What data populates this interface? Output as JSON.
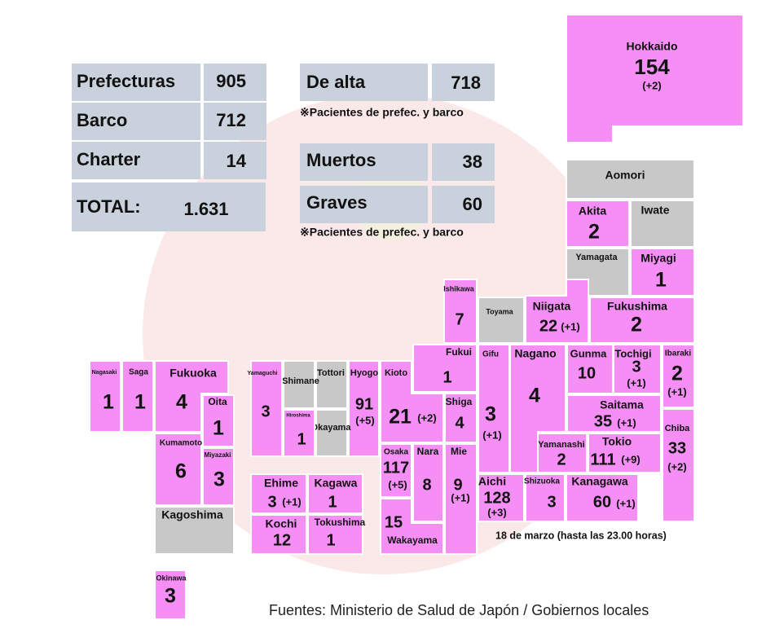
{
  "summary": [
    {
      "label": "Prefecturas",
      "value": 905
    },
    {
      "label": "Barco",
      "value": 712
    },
    {
      "label": "Charter",
      "value": 14
    }
  ],
  "total": {
    "label": "TOTAL:",
    "value": "1.631"
  },
  "discharged": {
    "label": "De alta",
    "value": 718,
    "note": "※Pacientes de prefec. y barco"
  },
  "status": [
    {
      "label": "Muertos",
      "value": 38
    },
    {
      "label": "Graves",
      "value": 60
    }
  ],
  "status_note": "※Pacientes de prefec. y barco",
  "prefectures": [
    {
      "name": "Hokkaido",
      "cases": 154,
      "change": "(+2)"
    },
    {
      "name": "Aomori"
    },
    {
      "name": "Akita",
      "cases": 2
    },
    {
      "name": "Iwate"
    },
    {
      "name": "Yamagata"
    },
    {
      "name": "Miyagi",
      "cases": 1
    },
    {
      "name": "Niigata",
      "cases": 22,
      "change": "(+1)"
    },
    {
      "name": "Fukushima",
      "cases": 2
    },
    {
      "name": "Toyama"
    },
    {
      "name": "Ishikawa",
      "cases": 7
    },
    {
      "name": "Fukui",
      "cases": 1
    },
    {
      "name": "Kioto",
      "cases": 21,
      "change": "(+2)"
    },
    {
      "name": "Shiga",
      "cases": 4
    },
    {
      "name": "Gifu",
      "cases": 3,
      "change": "(+1)"
    },
    {
      "name": "Nagano",
      "cases": 4
    },
    {
      "name": "Gunma",
      "cases": 10
    },
    {
      "name": "Tochigi",
      "cases": 3,
      "change": "(+1)"
    },
    {
      "name": "Ibaraki",
      "cases": 2,
      "change": "(+1)"
    },
    {
      "name": "Saitama",
      "cases": 35,
      "change": "(+1)"
    },
    {
      "name": "Yamanashi",
      "cases": 2
    },
    {
      "name": "Tokio",
      "cases": 111,
      "change": "(+9)"
    },
    {
      "name": "Chiba",
      "cases": 33,
      "change": "(+2)"
    },
    {
      "name": "Aichi",
      "cases": 128,
      "change": "(+3)"
    },
    {
      "name": "Shizuoka",
      "cases": 3
    },
    {
      "name": "Kanagawa",
      "cases": 60,
      "change": "(+1)"
    },
    {
      "name": "Mie",
      "cases": 9,
      "change": "(+1)"
    },
    {
      "name": "Nara",
      "cases": 8
    },
    {
      "name": "Osaka",
      "cases": 117,
      "change": "(+5)"
    },
    {
      "name": "Wakayama",
      "cases": 15
    },
    {
      "name": "Hyogo",
      "cases": 91,
      "change": "(+5)"
    },
    {
      "name": "Tottori"
    },
    {
      "name": "Okayama"
    },
    {
      "name": "Shimane"
    },
    {
      "name": "Hiroshima",
      "cases": 1
    },
    {
      "name": "Yamaguchi",
      "cases": 3
    },
    {
      "name": "Ehime",
      "cases": 3,
      "change": "(+1)"
    },
    {
      "name": "Kagawa",
      "cases": 1
    },
    {
      "name": "Kochi",
      "cases": 12
    },
    {
      "name": "Tokushima",
      "cases": 1
    },
    {
      "name": "Nagasaki",
      "cases": 1
    },
    {
      "name": "Saga",
      "cases": 1
    },
    {
      "name": "Fukuoka",
      "cases": 4
    },
    {
      "name": "Oita",
      "cases": 1
    },
    {
      "name": "Kumamoto",
      "cases": 6
    },
    {
      "name": "Miyazaki",
      "cases": 3
    },
    {
      "name": "Kagoshima"
    },
    {
      "name": "Okinawa",
      "cases": 3
    }
  ],
  "date": "18 de marzo (hasta las 23.00 horas)",
  "source": "Fuentes: Ministerio de Salud de Japón / Gobiernos locales"
}
